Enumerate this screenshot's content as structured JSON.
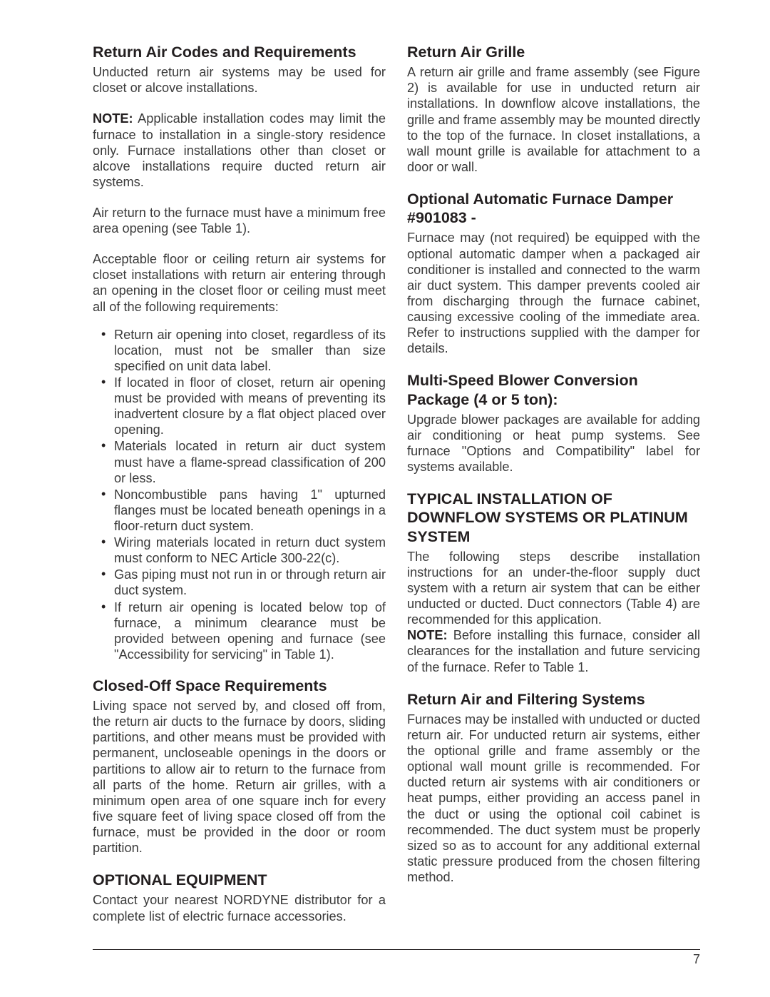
{
  "page_number": "7",
  "left": {
    "h1": "Return Air Codes and Requirements",
    "p1": "Unducted return air systems may be used for closet or alcove installations.",
    "note_label": "NOTE:",
    "p2": " Applicable installation codes may limit the furnace to installation in a single-story residence only. Furnace installations other than closet or alcove installations require ducted return air systems.",
    "p3": "Air return to the furnace must have a minimum free area opening (see Table 1).",
    "p4": "Acceptable floor or ceiling return air systems for closet installations with return air entering through an opening in the closet floor or ceiling must meet all of the following requirements:",
    "bullets": [
      "Return air opening into closet, regardless of its location, must not be smaller than size specified on unit data label.",
      "If located in floor of closet, return air opening must be provided with means of preventing its inadvertent closure by a flat object placed over opening.",
      "Materials located in return air duct system must have a flame-spread classification of 200 or less.",
      "Noncombustible pans having 1\" upturned flanges must be located beneath openings in a floor-return duct system.",
      "Wiring materials located in return duct system must conform to NEC Article 300-22(c).",
      "Gas piping must not run in or through return air duct system.",
      "If return air opening is located below top of furnace, a minimum clearance must be provided between opening and furnace (see \"Accessibility for servicing\" in Table 1)."
    ],
    "h2": "Closed-Off Space Requirements",
    "p5": "Living space not served by, and closed off from, the return air ducts to the furnace by doors, sliding partitions, and other means must be provided with permanent, uncloseable openings in the doors or partitions to allow air to return to the furnace from all parts of the home.  Return air grilles, with a minimum open area of one square inch for every five square feet of living space closed off from the furnace, must be provided in the door or room partition.",
    "h3": "OPTIONAL EQUIPMENT",
    "p6": "Contact your nearest NORDYNE distributor for a complete list of electric furnace accessories."
  },
  "right": {
    "h1": "Return Air Grille",
    "p1": "A return air grille and frame assembly (see Figure 2) is available for use in unducted return air installations. In downflow alcove installations, the grille and frame assembly may be mounted directly to the top of the furnace. In closet installations, a wall mount grille is available for attachment to a door or wall.",
    "h2": "Optional Automatic Furnace Damper #901083 -",
    "p2": "Furnace may (not required) be equipped with the optional automatic damper when a packaged air conditioner is installed and connected to the warm air duct system. This damper prevents cooled air from discharging through the furnace cabinet, causing excessive cooling of the immediate area. Refer to instructions supplied with the damper for details.",
    "h3": "Multi-Speed Blower Conversion Package (4 or 5 ton):",
    "p3": "Upgrade blower packages are available for adding air conditioning or heat pump systems. See furnace \"Options and Compatibility\" label for systems available.",
    "h4": "TYPICAL INSTALLATION OF DOWNFLOW SYSTEMS OR PLATINUM SYSTEM",
    "p4": "The following steps describe installation instructions for an under-the-floor supply duct system with a return air system that can be either unducted or ducted.  Duct connectors (Table 4) are recommended for this application.",
    "note_label": "NOTE:",
    "p5": " Before installing this furnace, consider all clearances for the installation and future servicing of the furnace.  Refer to Table 1.",
    "h5": "Return Air and Filtering Systems",
    "p6": "Furnaces may be installed with unducted or ducted return air.  For unducted return air systems, either the optional grille and frame assembly or the optional wall mount grille is recommended.  For ducted return air systems with air conditioners or heat pumps, either providing an access panel in the duct or using the optional coil cabinet is recommended. The duct system must be properly sized so as to account for any additional external static pressure produced from the chosen filtering method."
  }
}
